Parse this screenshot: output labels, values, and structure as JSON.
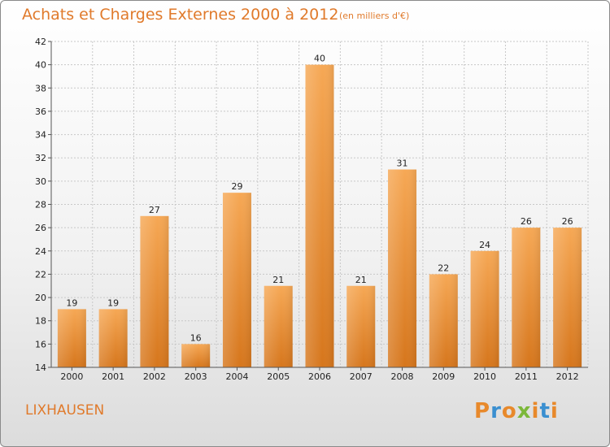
{
  "header": {
    "title": "Achats et Charges Externes 2000 à 2012",
    "subtitle": "(en milliers d'€)"
  },
  "footer": {
    "commune": "LIXHAUSEN",
    "logo_text": "Proxiti",
    "logo_colors": [
      "#e8892b",
      "#3a8fd0",
      "#e8892b",
      "#7cb83a",
      "#e8892b",
      "#3a8fd0",
      "#e8892b"
    ]
  },
  "colors": {
    "accent": "#e07a2b",
    "bar_top": "#f6a855",
    "bar_bottom": "#d6761c",
    "grid": "#c8c8c8"
  },
  "chart_data": {
    "type": "bar",
    "title": "Achats et Charges Externes 2000 à 2012",
    "subtitle": "(en milliers d'€)",
    "xlabel": "",
    "ylabel": "",
    "categories": [
      "2000",
      "2001",
      "2002",
      "2003",
      "2004",
      "2005",
      "2006",
      "2007",
      "2008",
      "2009",
      "2010",
      "2011",
      "2012"
    ],
    "values": [
      19,
      19,
      27,
      16,
      29,
      21,
      40,
      21,
      31,
      22,
      24,
      26,
      26
    ],
    "ylim": [
      14,
      42
    ],
    "yticks": [
      14,
      16,
      18,
      20,
      22,
      24,
      26,
      28,
      30,
      32,
      34,
      36,
      38,
      40,
      42
    ],
    "grid": true,
    "data_labels": true
  }
}
